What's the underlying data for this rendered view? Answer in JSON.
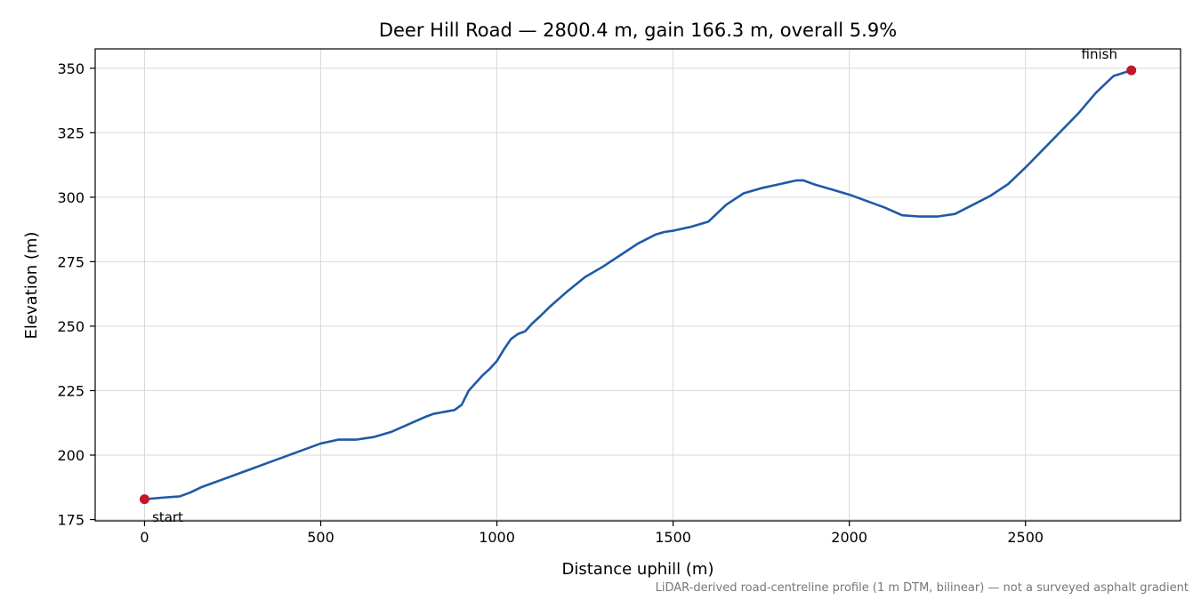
{
  "colors": {
    "line": "#1f5aa6",
    "marker": "#c0182a",
    "grid": "#d9d9d9",
    "footnote": "#777777"
  },
  "chart_data": {
    "type": "line",
    "title": "Deer Hill Road — 2800.4 m, gain 166.3 m, overall 5.9%",
    "xlabel": "Distance uphill (m)",
    "ylabel": "Elevation (m)",
    "xlim": [
      -140,
      2940
    ],
    "ylim": [
      174.5,
      357.5
    ],
    "xticks": [
      0,
      500,
      1000,
      1500,
      2000,
      2500
    ],
    "xtick_labels": [
      "0",
      "500",
      "1000",
      "1500",
      "2000",
      "2500"
    ],
    "yticks": [
      175,
      200,
      225,
      250,
      275,
      300,
      325,
      350
    ],
    "ytick_labels": [
      "175",
      "200",
      "225",
      "250",
      "275",
      "300",
      "325",
      "350"
    ],
    "grid": true,
    "series": [
      {
        "x": [
          0,
          50,
          100,
          130,
          160,
          200,
          250,
          300,
          350,
          400,
          450,
          500,
          550,
          600,
          650,
          700,
          750,
          800,
          820,
          840,
          860,
          880,
          900,
          920,
          940,
          960,
          980,
          1000,
          1020,
          1040,
          1060,
          1080,
          1100,
          1120,
          1150,
          1200,
          1250,
          1300,
          1350,
          1400,
          1450,
          1475,
          1500,
          1550,
          1600,
          1650,
          1700,
          1750,
          1800,
          1850,
          1870,
          1900,
          1950,
          2000,
          2050,
          2100,
          2150,
          2200,
          2250,
          2300,
          2350,
          2400,
          2450,
          2500,
          2550,
          2600,
          2650,
          2700,
          2750,
          2800.4
        ],
        "y": [
          182.9,
          183.5,
          184.0,
          185.5,
          187.5,
          189.5,
          192.0,
          194.5,
          197.0,
          199.5,
          202.0,
          204.5,
          206.0,
          206.0,
          207.0,
          209.0,
          212.0,
          215.0,
          216.0,
          216.5,
          217.0,
          217.5,
          219.5,
          225.0,
          228.0,
          231.0,
          233.5,
          236.5,
          241.0,
          245.0,
          247.0,
          248.0,
          251.0,
          253.5,
          257.5,
          263.5,
          269.0,
          273.0,
          277.5,
          282.0,
          285.5,
          286.5,
          287.0,
          288.5,
          290.5,
          297.0,
          301.5,
          303.5,
          305.0,
          306.5,
          306.5,
          305.0,
          303.0,
          301.0,
          298.5,
          296.0,
          293.0,
          292.5,
          292.5,
          293.5,
          297.0,
          300.5,
          305.0,
          311.5,
          318.5,
          325.5,
          332.5,
          340.5,
          347.0,
          349.2
        ]
      }
    ],
    "annotations": [
      {
        "text": "start",
        "x": 0,
        "y": 182.9
      },
      {
        "text": "finish",
        "x": 2800.4,
        "y": 349.2
      }
    ],
    "footnote": "LiDAR-derived road-centreline profile (1 m DTM, bilinear) — not a surveyed asphalt gradient"
  }
}
